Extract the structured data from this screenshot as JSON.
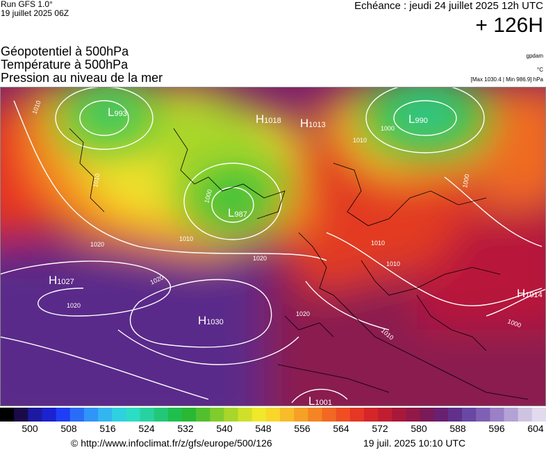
{
  "header": {
    "run": "Run GFS 1.0°",
    "run_date": "19 juillet 2025 06Z",
    "echeance": "Echéance : jeudi 24 juillet 2025 12h UTC",
    "horizon": "+ 126H"
  },
  "titles": [
    "Géopotentiel à 500hPa",
    "Température à 500hPa",
    "Pression au niveau de la mer"
  ],
  "units": {
    "geopotential": "gpdam",
    "temperature": "°C",
    "pressure": "[Max 1030.4 | Min 986.9] hPa"
  },
  "map": {
    "pressure_centers": [
      {
        "type": "L",
        "value": "993"
      },
      {
        "type": "H",
        "value": "1018"
      },
      {
        "type": "H",
        "value": "1013"
      },
      {
        "type": "L",
        "value": "990"
      },
      {
        "type": "L",
        "value": "987"
      },
      {
        "type": "H",
        "value": "1027"
      },
      {
        "type": "H",
        "value": "1030"
      },
      {
        "type": "H",
        "value": "1014"
      },
      {
        "type": "L",
        "value": "1001"
      }
    ],
    "isobar_labels": [
      "1010",
      "1010",
      "1010",
      "1000",
      "1000",
      "1010",
      "1000",
      "1020",
      "1020",
      "1020",
      "1020",
      "1010",
      "1020",
      "1010",
      "1000",
      "1010"
    ]
  },
  "colorscale": {
    "ticks": [
      "500",
      "508",
      "516",
      "524",
      "532",
      "540",
      "548",
      "556",
      "564",
      "572",
      "580",
      "588",
      "596",
      "604"
    ],
    "colors": [
      "#000000",
      "#1a0a4a",
      "#1c1aa0",
      "#1b22d0",
      "#1e3ef5",
      "#2a6cf7",
      "#2f95f8",
      "#33b5ef",
      "#2fd0e0",
      "#2cdcc4",
      "#28d2a0",
      "#22c878",
      "#1fbf4e",
      "#29b834",
      "#52c02e",
      "#80cc2c",
      "#a8d62a",
      "#d0e02a",
      "#f0e82a",
      "#f8d62a",
      "#f8bc28",
      "#f6a026",
      "#f48424",
      "#f26822",
      "#ee4e22",
      "#e63624",
      "#d42628",
      "#c01e30",
      "#a8183a",
      "#921848",
      "#7a1a58",
      "#6a2070",
      "#60308a",
      "#6848a4",
      "#8060b4",
      "#9a80c4",
      "#b4a2d4",
      "#cec4e2",
      "#e2daee"
    ],
    "tick_colors": [
      "#000",
      "#000",
      "#000",
      "#000",
      "#000",
      "#000",
      "#000",
      "#000",
      "#000",
      "#000",
      "#000",
      "#000",
      "#000",
      "#000"
    ]
  },
  "footer": {
    "copyright": "© http://www.infoclimat.fr/z/gfs/europe/500/126",
    "generated": "19 juil. 2025 10:10 UTC"
  }
}
